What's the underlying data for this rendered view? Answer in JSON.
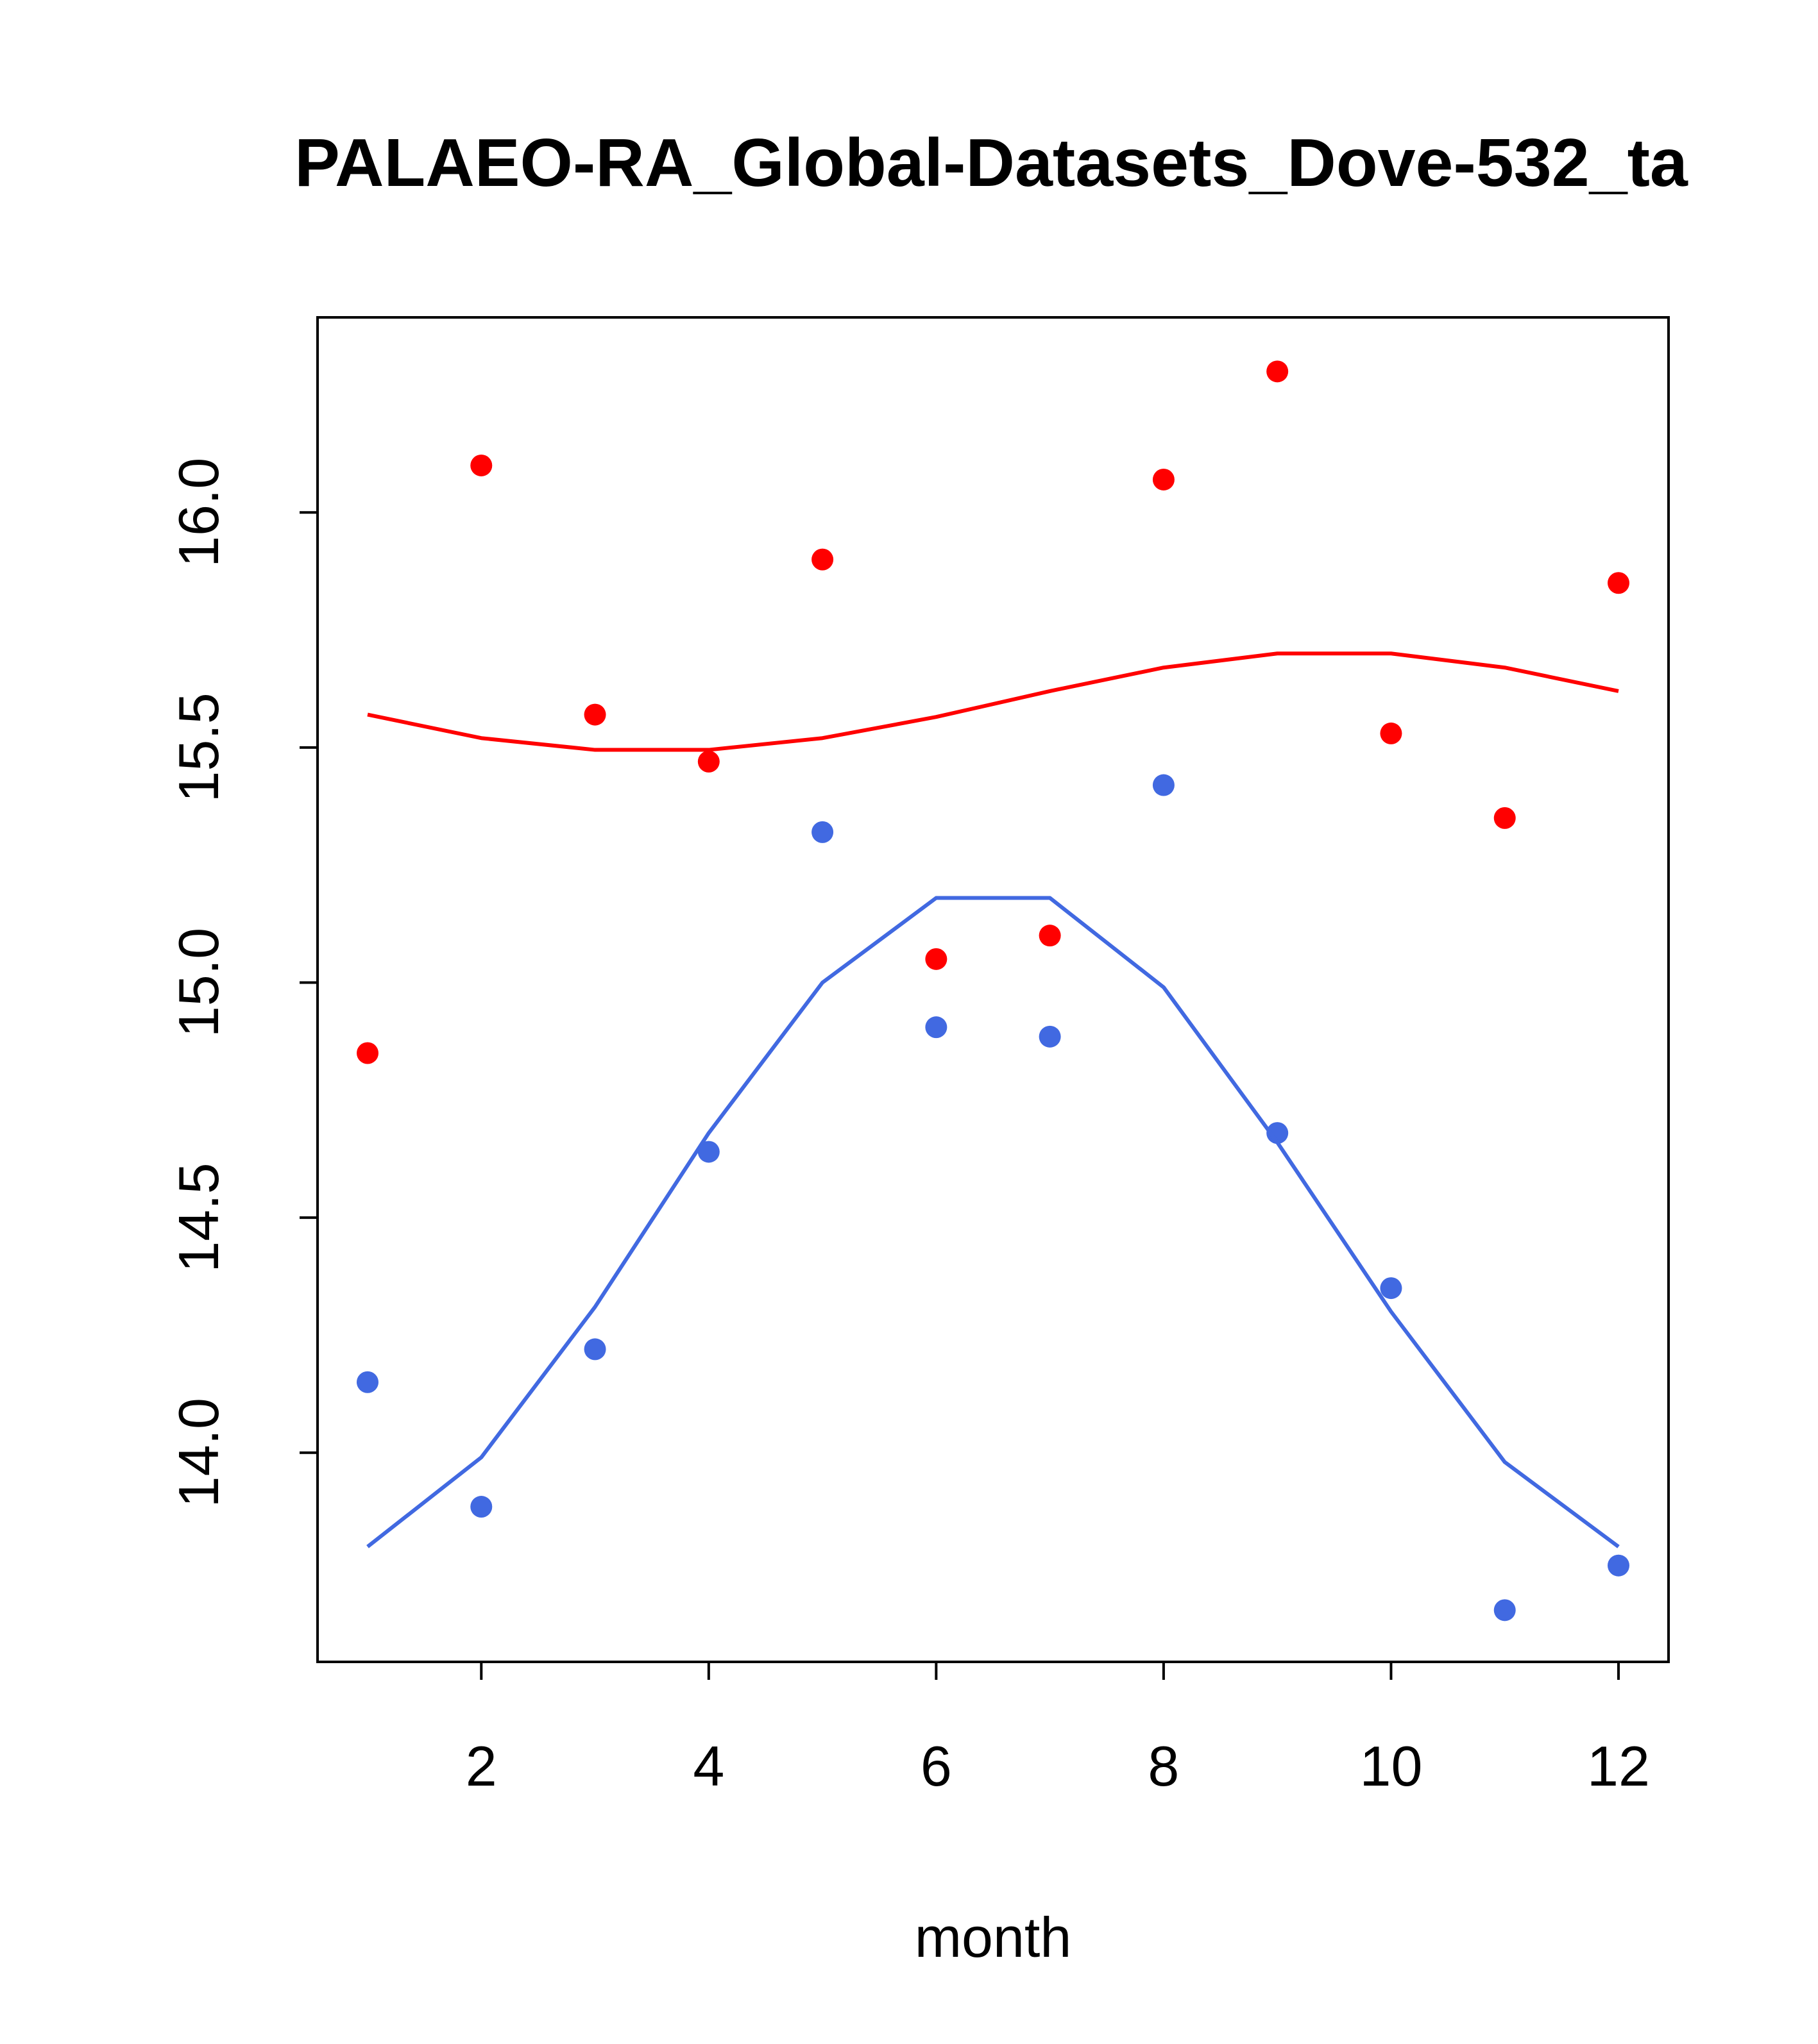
{
  "chart_data": {
    "type": "scatter",
    "title": "PALAEO-RA_Global-Datasets_Dove-532_ta",
    "xlabel": "month",
    "ylabel": "",
    "xlim": [
      0.56,
      12.44
    ],
    "ylim": [
      13.555,
      16.415
    ],
    "xticks": [
      2,
      4,
      6,
      8,
      10,
      12
    ],
    "yticks": [
      14.0,
      14.5,
      15.0,
      15.5,
      16.0
    ],
    "ytick_labels": [
      "14.0",
      "14.5",
      "15.0",
      "15.5",
      "16.0"
    ],
    "x": [
      1,
      2,
      3,
      4,
      5,
      6,
      7,
      8,
      9,
      10,
      11,
      12
    ],
    "series": [
      {
        "name": "red points",
        "kind": "points",
        "color": "#ff0000",
        "values": [
          14.85,
          16.1,
          15.57,
          15.47,
          15.9,
          15.05,
          15.1,
          16.07,
          16.3,
          15.53,
          15.35,
          15.85
        ]
      },
      {
        "name": "red line",
        "kind": "line",
        "color": "#ff0000",
        "values": [
          15.57,
          15.52,
          15.495,
          15.495,
          15.52,
          15.565,
          15.62,
          15.67,
          15.7,
          15.7,
          15.67,
          15.62
        ]
      },
      {
        "name": "blue points",
        "kind": "points",
        "color": "#4169e1",
        "values": [
          14.15,
          13.885,
          14.22,
          14.64,
          15.32,
          14.905,
          14.885,
          15.42,
          14.68,
          14.35,
          13.665,
          13.76
        ]
      },
      {
        "name": "blue line",
        "kind": "line",
        "color": "#4169e1",
        "values": [
          13.8,
          13.99,
          14.31,
          14.68,
          15.0,
          15.18,
          15.18,
          14.99,
          14.66,
          14.3,
          13.98,
          13.8
        ]
      }
    ]
  }
}
